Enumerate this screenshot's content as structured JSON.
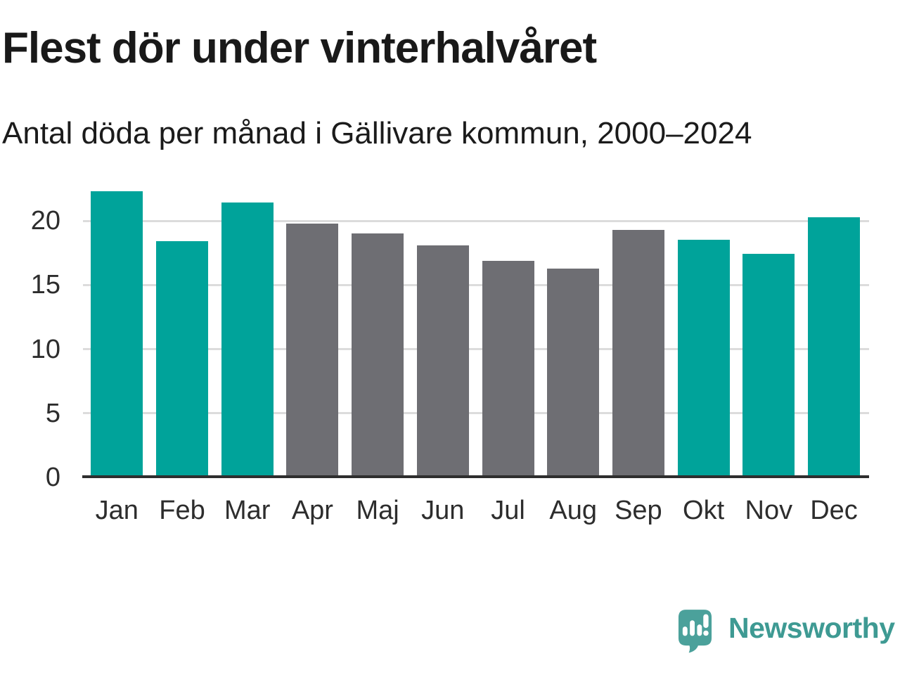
{
  "title": "Flest dör under vinterhalvåret",
  "subtitle": "Antal döda per månad i Gällivare kommun, 2000–2024",
  "branding": {
    "name": "Newsworthy",
    "logo_icon": "speech-bubble-bar-chart-exclamation",
    "logo_color": "#4ba19b",
    "logo_text_color": "#3e9a93"
  },
  "colors": {
    "winter_bar": "#00a39a",
    "summer_bar": "#6e6e73",
    "gridline": "#dcdcdc",
    "axis": "#2e2e2e",
    "tick_text": "#2d2d2d",
    "title_text": "#191919",
    "background": "#ffffff"
  },
  "chart_data": {
    "type": "bar",
    "title": "Flest dör under vinterhalvåret",
    "subtitle": "Antal döda per månad i Gällivare kommun, 2000–2024",
    "categories": [
      "Jan",
      "Feb",
      "Mar",
      "Apr",
      "Maj",
      "Jun",
      "Jul",
      "Aug",
      "Sep",
      "Okt",
      "Nov",
      "Dec"
    ],
    "values": [
      22.3,
      18.4,
      21.4,
      19.8,
      19.0,
      18.1,
      16.9,
      16.3,
      19.3,
      18.5,
      17.4,
      20.3
    ],
    "bar_colors": [
      "#00a39a",
      "#00a39a",
      "#00a39a",
      "#6e6e73",
      "#6e6e73",
      "#6e6e73",
      "#6e6e73",
      "#6e6e73",
      "#6e6e73",
      "#00a39a",
      "#00a39a",
      "#00a39a"
    ],
    "xlabel": "",
    "ylabel": "",
    "ylim": [
      0,
      22.8
    ],
    "yticks": [
      0,
      5,
      10,
      15,
      20
    ],
    "grid": "horizontal",
    "legend": "none"
  }
}
